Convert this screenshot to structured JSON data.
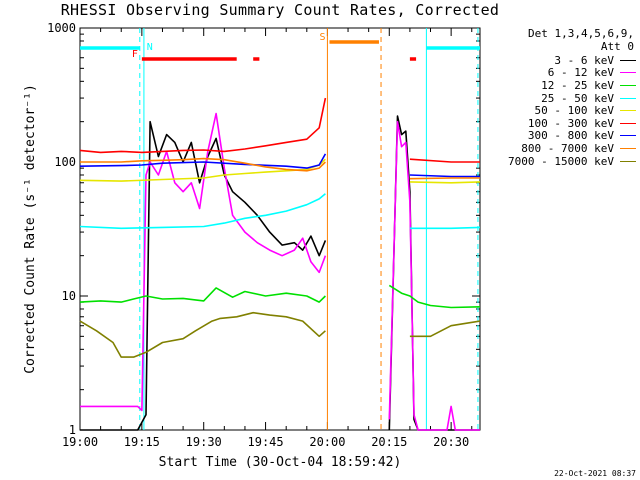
{
  "title": "RHESSI Observing Summary Count Rates, Corrected",
  "detectors_line1": "Det 1,3,4,5,6,9,",
  "detectors_line2": "Att 0",
  "timestamp": "22-Oct-2021 08:37",
  "chart_data": {
    "type": "line",
    "title": "RHESSI Observing Summary Count Rates, Corrected",
    "xlabel": "Start Time (30-Oct-04 18:59:42)",
    "ylabel": "Corrected Count Rate (s⁻¹ detector⁻¹)",
    "yscale": "log",
    "ylim": [
      1,
      1000
    ],
    "xlim": [
      0,
      97
    ],
    "x_unit": "minutes after 19:00",
    "x_ticks": [
      {
        "x": 0,
        "label": "19:00"
      },
      {
        "x": 15,
        "label": "19:15"
      },
      {
        "x": 30,
        "label": "19:30"
      },
      {
        "x": 45,
        "label": "19:45"
      },
      {
        "x": 60,
        "label": "20:00"
      },
      {
        "x": 75,
        "label": "20:15"
      },
      {
        "x": 90,
        "label": "20:30"
      }
    ],
    "y_ticks": [
      {
        "y": 1,
        "label": "1"
      },
      {
        "y": 10,
        "label": "10"
      },
      {
        "y": 100,
        "label": "100"
      },
      {
        "y": 1000,
        "label": "1000"
      }
    ],
    "series": [
      {
        "name": "3 - 6 keV",
        "color": "#000000",
        "x": [
          0,
          14,
          16,
          17,
          19,
          21,
          23,
          25,
          27,
          29,
          31,
          33,
          35,
          37,
          40,
          43,
          46,
          49,
          52,
          54,
          56,
          58,
          59.5,
          74,
          75,
          77,
          78,
          79,
          80,
          81,
          82,
          97
        ],
        "y": [
          1,
          1,
          1.3,
          200,
          110,
          160,
          140,
          100,
          140,
          70,
          110,
          150,
          80,
          60,
          50,
          40,
          30,
          24,
          25,
          22,
          28,
          20,
          26,
          null,
          1,
          220,
          160,
          170,
          60,
          1.2,
          1,
          1
        ]
      },
      {
        "name": "6 - 12 keV",
        "color": "#ff00ff",
        "x": [
          0,
          14,
          15,
          16,
          17,
          19,
          21,
          23,
          25,
          27,
          29,
          31,
          33,
          35,
          37,
          40,
          43,
          46,
          49,
          52,
          54,
          56,
          58,
          59.5,
          74,
          75,
          77,
          78,
          79,
          80,
          81,
          82,
          89,
          90,
          91,
          97
        ],
        "y": [
          1.5,
          1.5,
          1.4,
          80,
          100,
          80,
          120,
          70,
          60,
          70,
          45,
          120,
          230,
          90,
          40,
          30,
          25,
          22,
          20,
          22,
          27,
          18,
          15,
          20,
          null,
          1.2,
          200,
          130,
          140,
          50,
          1.3,
          1,
          1,
          1.5,
          1,
          1
        ]
      },
      {
        "name": "12 - 25 keV",
        "color": "#00e000",
        "x": [
          0,
          5,
          10,
          13,
          16,
          20,
          25,
          30,
          33,
          37,
          40,
          45,
          50,
          55,
          58,
          59.5,
          74,
          75,
          78,
          80,
          82,
          85,
          90,
          97
        ],
        "y": [
          9,
          9.2,
          9,
          9.5,
          10,
          9.5,
          9.6,
          9.2,
          11.5,
          9.8,
          10.8,
          10,
          10.5,
          10,
          9,
          10,
          null,
          12,
          10.5,
          10,
          9,
          8.5,
          8.2,
          8.3
        ]
      },
      {
        "name": "25 - 50 keV",
        "color": "#00ffff",
        "x": [
          0,
          10,
          20,
          30,
          35,
          40,
          45,
          50,
          55,
          58,
          59.5,
          74,
          80,
          90,
          97
        ],
        "y": [
          33,
          32,
          32.5,
          33,
          35,
          38,
          40,
          43,
          48,
          53,
          58,
          null,
          32,
          32,
          32.5
        ]
      },
      {
        "name": "50 - 100 keV",
        "color": "#e6e600",
        "x": [
          0,
          10,
          20,
          30,
          35,
          40,
          45,
          50,
          55,
          58,
          59.5,
          74,
          80,
          90,
          97
        ],
        "y": [
          73,
          72,
          74,
          76,
          80,
          82,
          84,
          86,
          88,
          95,
          105,
          null,
          71,
          70,
          71
        ]
      },
      {
        "name": "100 - 300 keV",
        "color": "#ff0000",
        "x": [
          0,
          5,
          10,
          15,
          20,
          25,
          30,
          35,
          40,
          45,
          50,
          55,
          58,
          59.5,
          74,
          80,
          90,
          97
        ],
        "y": [
          122,
          118,
          120,
          118,
          120,
          122,
          123,
          120,
          125,
          132,
          140,
          148,
          180,
          300,
          null,
          105,
          100,
          100
        ]
      },
      {
        "name": "300 - 800 keV",
        "color": "#0000ff",
        "x": [
          0,
          10,
          15,
          20,
          30,
          40,
          50,
          55,
          58,
          59.5,
          74,
          80,
          90,
          97
        ],
        "y": [
          93,
          94,
          95,
          98,
          100,
          96,
          93,
          90,
          95,
          115,
          null,
          80,
          78,
          78
        ]
      },
      {
        "name": "800 - 7000 keV",
        "color": "#ff8000",
        "x": [
          0,
          10,
          15,
          20,
          25,
          30,
          35,
          40,
          45,
          50,
          55,
          58,
          59.5,
          74,
          80,
          90,
          97
        ],
        "y": [
          100,
          100,
          102,
          103,
          104,
          106,
          104,
          98,
          92,
          88,
          86,
          90,
          100,
          null,
          75,
          76,
          76
        ]
      },
      {
        "name": "7000 - 15000 keV",
        "color": "#808000",
        "x": [
          0,
          4,
          8,
          10,
          13,
          16,
          20,
          25,
          28,
          32,
          34,
          38,
          42,
          46,
          50,
          54,
          58,
          59.5,
          74,
          80,
          85,
          90,
          97
        ],
        "y": [
          6.5,
          5.5,
          4.5,
          3.5,
          3.5,
          3.8,
          4.5,
          4.8,
          5.5,
          6.5,
          6.8,
          7,
          7.5,
          7.2,
          7,
          6.5,
          5,
          5.5,
          null,
          5,
          5,
          6,
          6.5
        ]
      }
    ],
    "flag_bars": [
      {
        "label": "N",
        "color": "#00ffff",
        "segments": [
          [
            0,
            14.5
          ],
          [
            84,
            97
          ]
        ]
      },
      {
        "label": "F",
        "color": "#ff0000",
        "segments": [
          [
            15,
            38
          ],
          [
            42,
            43.5
          ],
          [
            80,
            81.5
          ]
        ]
      },
      {
        "label": "S",
        "color": "#ff8000",
        "segments": [
          [
            60.5,
            72.5
          ]
        ]
      }
    ],
    "markers": [
      {
        "x": 14.5,
        "color": "#00ffff",
        "style": "dashed"
      },
      {
        "x": 15.5,
        "color": "#00ffff",
        "style": "solid"
      },
      {
        "x": 60,
        "color": "#ff8000",
        "style": "solid"
      },
      {
        "x": 73,
        "color": "#ff8000",
        "style": "dashed"
      },
      {
        "x": 84,
        "color": "#00ffff",
        "style": "solid"
      },
      {
        "x": 96.5,
        "color": "#00ffff",
        "style": "dashed"
      }
    ]
  }
}
